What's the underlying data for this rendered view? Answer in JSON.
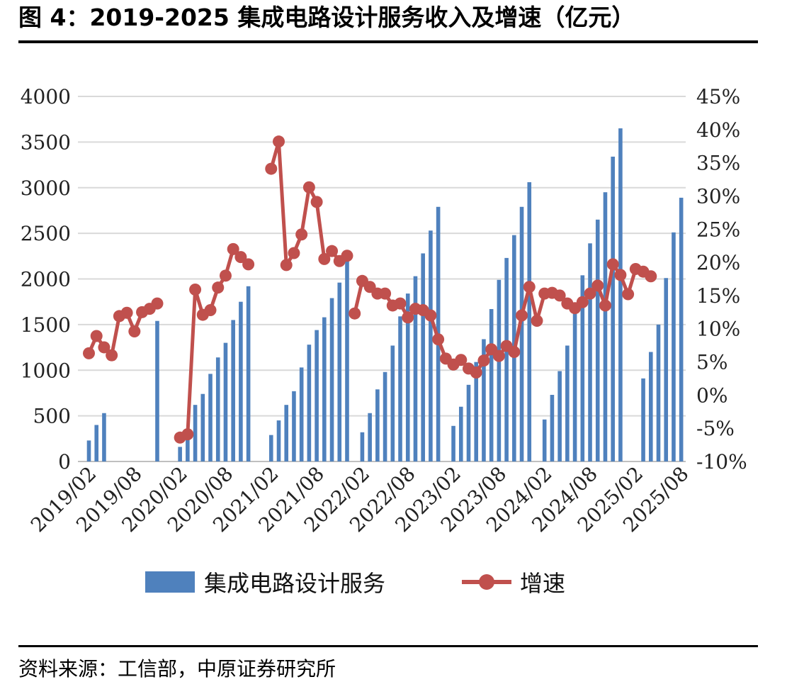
{
  "title": "图 4：2019-2025 集成电路设计服务收入及增速（亿元）",
  "source": "资料来源：工信部，中原证券研究所",
  "colors": {
    "bar": "#4f81bd",
    "line": "#c0504d",
    "grid": "#d9d9d9",
    "axis": "#bfbfbf"
  },
  "chart_data": {
    "type": "bar+line",
    "left_axis": {
      "min": 0,
      "max": 4000,
      "ticks": [
        "0",
        "500",
        "1000",
        "1500",
        "2000",
        "2500",
        "3000",
        "3500",
        "4000"
      ]
    },
    "right_axis": {
      "min": -10,
      "max": 45,
      "ticks": [
        "-10%",
        "-5%",
        "0%",
        "5%",
        "10%",
        "15%",
        "20%",
        "25%",
        "30%",
        "35%",
        "40%",
        "45%"
      ]
    },
    "x_tick_labels": [
      "2019/02",
      "2019/08",
      "2020/02",
      "2020/08",
      "2021/02",
      "2021/08",
      "2022/02",
      "2022/08",
      "2023/02",
      "2023/08",
      "2024/02",
      "2024/08",
      "2025/02",
      "2025/08"
    ],
    "grid": "horizontal",
    "legend_position": "bottom",
    "series": [
      {
        "name": "集成电路设计服务",
        "type": "bar",
        "values": [
          [
            0,
            230
          ],
          [
            1,
            400
          ],
          [
            2,
            530
          ],
          [
            9,
            1540
          ],
          [
            12,
            160
          ],
          [
            13,
            310
          ],
          [
            14,
            620
          ],
          [
            15,
            740
          ],
          [
            16,
            960
          ],
          [
            17,
            1140
          ],
          [
            18,
            1300
          ],
          [
            19,
            1550
          ],
          [
            20,
            1750
          ],
          [
            21,
            1920
          ],
          [
            24,
            290
          ],
          [
            25,
            450
          ],
          [
            26,
            620
          ],
          [
            27,
            770
          ],
          [
            28,
            1030
          ],
          [
            29,
            1280
          ],
          [
            30,
            1440
          ],
          [
            31,
            1580
          ],
          [
            32,
            1790
          ],
          [
            33,
            1960
          ],
          [
            34,
            2200
          ],
          [
            36,
            320
          ],
          [
            37,
            530
          ],
          [
            38,
            790
          ],
          [
            39,
            980
          ],
          [
            40,
            1270
          ],
          [
            41,
            1590
          ],
          [
            42,
            1840
          ],
          [
            43,
            2030
          ],
          [
            44,
            2280
          ],
          [
            45,
            2530
          ],
          [
            46,
            2790
          ],
          [
            48,
            390
          ],
          [
            49,
            600
          ],
          [
            50,
            840
          ],
          [
            51,
            1090
          ],
          [
            52,
            1340
          ],
          [
            53,
            1670
          ],
          [
            54,
            1990
          ],
          [
            55,
            2230
          ],
          [
            56,
            2480
          ],
          [
            57,
            2790
          ],
          [
            58,
            3060
          ],
          [
            60,
            460
          ],
          [
            61,
            730
          ],
          [
            62,
            990
          ],
          [
            63,
            1270
          ],
          [
            64,
            1630
          ],
          [
            65,
            2040
          ],
          [
            66,
            2390
          ],
          [
            67,
            2650
          ],
          [
            68,
            2950
          ],
          [
            69,
            3340
          ],
          [
            70,
            3650
          ],
          [
            73,
            910
          ],
          [
            74,
            1200
          ],
          [
            75,
            1500
          ],
          [
            76,
            2010
          ],
          [
            77,
            2510
          ],
          [
            78,
            2890
          ]
        ]
      },
      {
        "name": "增速",
        "type": "line",
        "segments": [
          [
            [
              0,
              6.3
            ],
            [
              1,
              8.9
            ],
            [
              2,
              7.2
            ],
            [
              3,
              6.0
            ],
            [
              4,
              11.9
            ],
            [
              5,
              12.4
            ],
            [
              6,
              9.6
            ],
            [
              7,
              12.5
            ],
            [
              8,
              13.0
            ],
            [
              9,
              13.8
            ]
          ],
          [
            [
              12,
              -6.4
            ],
            [
              13,
              -5.9
            ],
            [
              14,
              15.9
            ],
            [
              15,
              12.1
            ],
            [
              16,
              12.8
            ],
            [
              17,
              16.2
            ],
            [
              18,
              18.0
            ],
            [
              19,
              22.0
            ],
            [
              20,
              20.8
            ],
            [
              21,
              19.7
            ]
          ],
          [
            [
              24,
              34.1
            ],
            [
              25,
              38.2
            ],
            [
              26,
              19.6
            ],
            [
              27,
              21.4
            ],
            [
              28,
              24.2
            ],
            [
              29,
              31.3
            ],
            [
              30,
              29.1
            ],
            [
              31,
              20.5
            ],
            [
              32,
              21.7
            ],
            [
              33,
              20.2
            ],
            [
              34,
              21.0
            ]
          ],
          [
            [
              35,
              12.3
            ],
            [
              36,
              17.2
            ],
            [
              37,
              16.3
            ],
            [
              38,
              15.3
            ],
            [
              39,
              15.3
            ],
            [
              40,
              13.5
            ],
            [
              41,
              13.8
            ],
            [
              42,
              11.7
            ],
            [
              43,
              13.0
            ],
            [
              44,
              12.8
            ],
            [
              45,
              12.0
            ],
            [
              46,
              8.4
            ],
            [
              47,
              5.5
            ],
            [
              48,
              4.6
            ],
            [
              49,
              5.3
            ],
            [
              50,
              4.0
            ],
            [
              51,
              3.4
            ],
            [
              52,
              5.2
            ],
            [
              53,
              6.9
            ],
            [
              54,
              5.9
            ],
            [
              55,
              7.4
            ],
            [
              56,
              6.5
            ],
            [
              57,
              12.0
            ],
            [
              58,
              16.3
            ],
            [
              59,
              11.2
            ],
            [
              60,
              15.3
            ],
            [
              61,
              15.4
            ],
            [
              62,
              15.0
            ],
            [
              63,
              13.8
            ],
            [
              64,
              13.1
            ],
            [
              65,
              14.0
            ],
            [
              66,
              15.3
            ],
            [
              67,
              16.5
            ],
            [
              68,
              13.5
            ],
            [
              69,
              19.7
            ],
            [
              70,
              18.1
            ],
            [
              71,
              15.2
            ],
            [
              72,
              19.0
            ],
            [
              73,
              18.6
            ],
            [
              74,
              17.9
            ]
          ]
        ]
      }
    ]
  }
}
